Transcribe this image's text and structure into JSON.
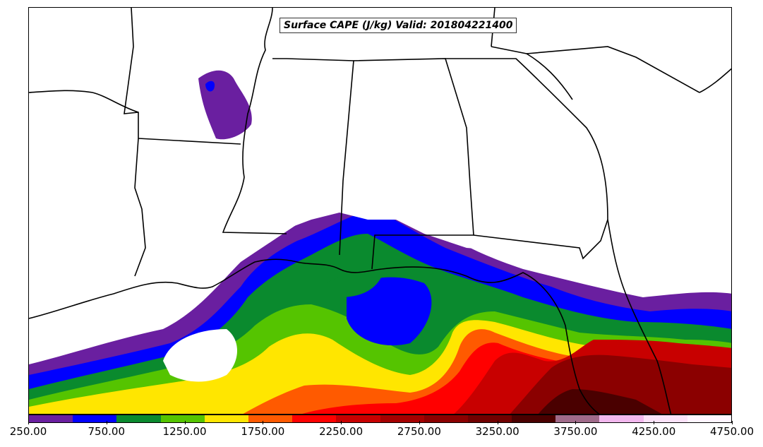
{
  "title": "Surface CAPE (J/kg) Valid: 201804221400",
  "colorbar": {
    "colors": [
      "#6a1fa0",
      "#0000ff",
      "#0a8a2e",
      "#55c400",
      "#ffe600",
      "#ff5a00",
      "#ff0000",
      "#c80000",
      "#a50000",
      "#8b0000",
      "#700000",
      "#4a0000",
      "#a06b8a",
      "#f2b8ee",
      "#fbe2f8",
      "#fff5ff"
    ],
    "labels": [
      "250.00",
      "750.00",
      "1250.00",
      "1750.00",
      "2250.00",
      "2750.00",
      "3250.00",
      "3750.00",
      "4250.00",
      "4750.00"
    ]
  },
  "legend_colors": {
    "land": "#ffffff",
    "border": "#000000"
  }
}
